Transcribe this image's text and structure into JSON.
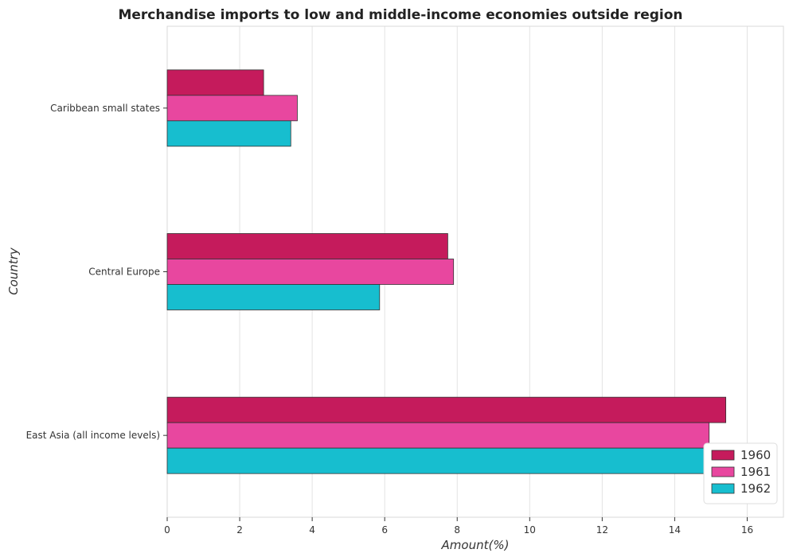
{
  "chart_data": {
    "type": "bar",
    "orientation": "horizontal",
    "title": "Merchandise imports to low and middle-income economies outside region",
    "xlabel": "Amount(%)",
    "ylabel": "Country",
    "xlim": [
      0,
      17
    ],
    "xticks": [
      0,
      2,
      4,
      6,
      8,
      10,
      12,
      14,
      16
    ],
    "categories": [
      "Caribbean small states",
      "Central Europe",
      "East Asia (all income levels)"
    ],
    "series": [
      {
        "name": "1960",
        "color": "#c51b5c",
        "values": [
          2.66,
          7.74,
          15.41
        ]
      },
      {
        "name": "1961",
        "color": "#e8479f",
        "values": [
          3.59,
          7.9,
          14.95
        ]
      },
      {
        "name": "1962",
        "color": "#17becf",
        "values": [
          3.41,
          5.86,
          16.2
        ]
      }
    ],
    "legend_position": "bottom-right",
    "grid": true
  }
}
